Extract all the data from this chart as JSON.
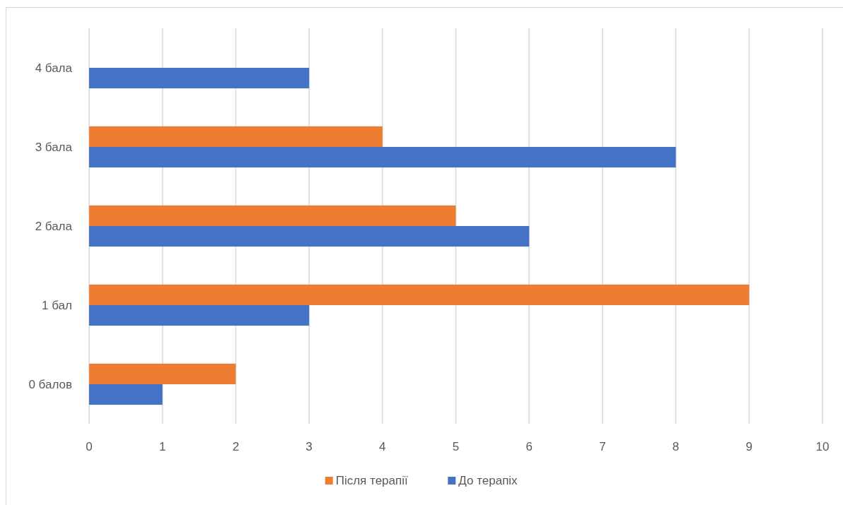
{
  "chart_data": {
    "type": "bar",
    "orientation": "horizontal",
    "categories": [
      "4 бала",
      "3 бала",
      "2 бала",
      "1 бал",
      "0 балов"
    ],
    "series": [
      {
        "name": "Після терапії",
        "color": "#ed7d31",
        "values": [
          null,
          4,
          5,
          9,
          2
        ]
      },
      {
        "name": "До терапіх",
        "color": "#4472c4",
        "values": [
          3,
          8,
          6,
          3,
          1
        ]
      }
    ],
    "xlim": [
      0,
      10
    ],
    "xticks": [
      0,
      1,
      2,
      3,
      4,
      5,
      6,
      7,
      8,
      9,
      10
    ],
    "grid": "x",
    "legend": "bottom"
  }
}
